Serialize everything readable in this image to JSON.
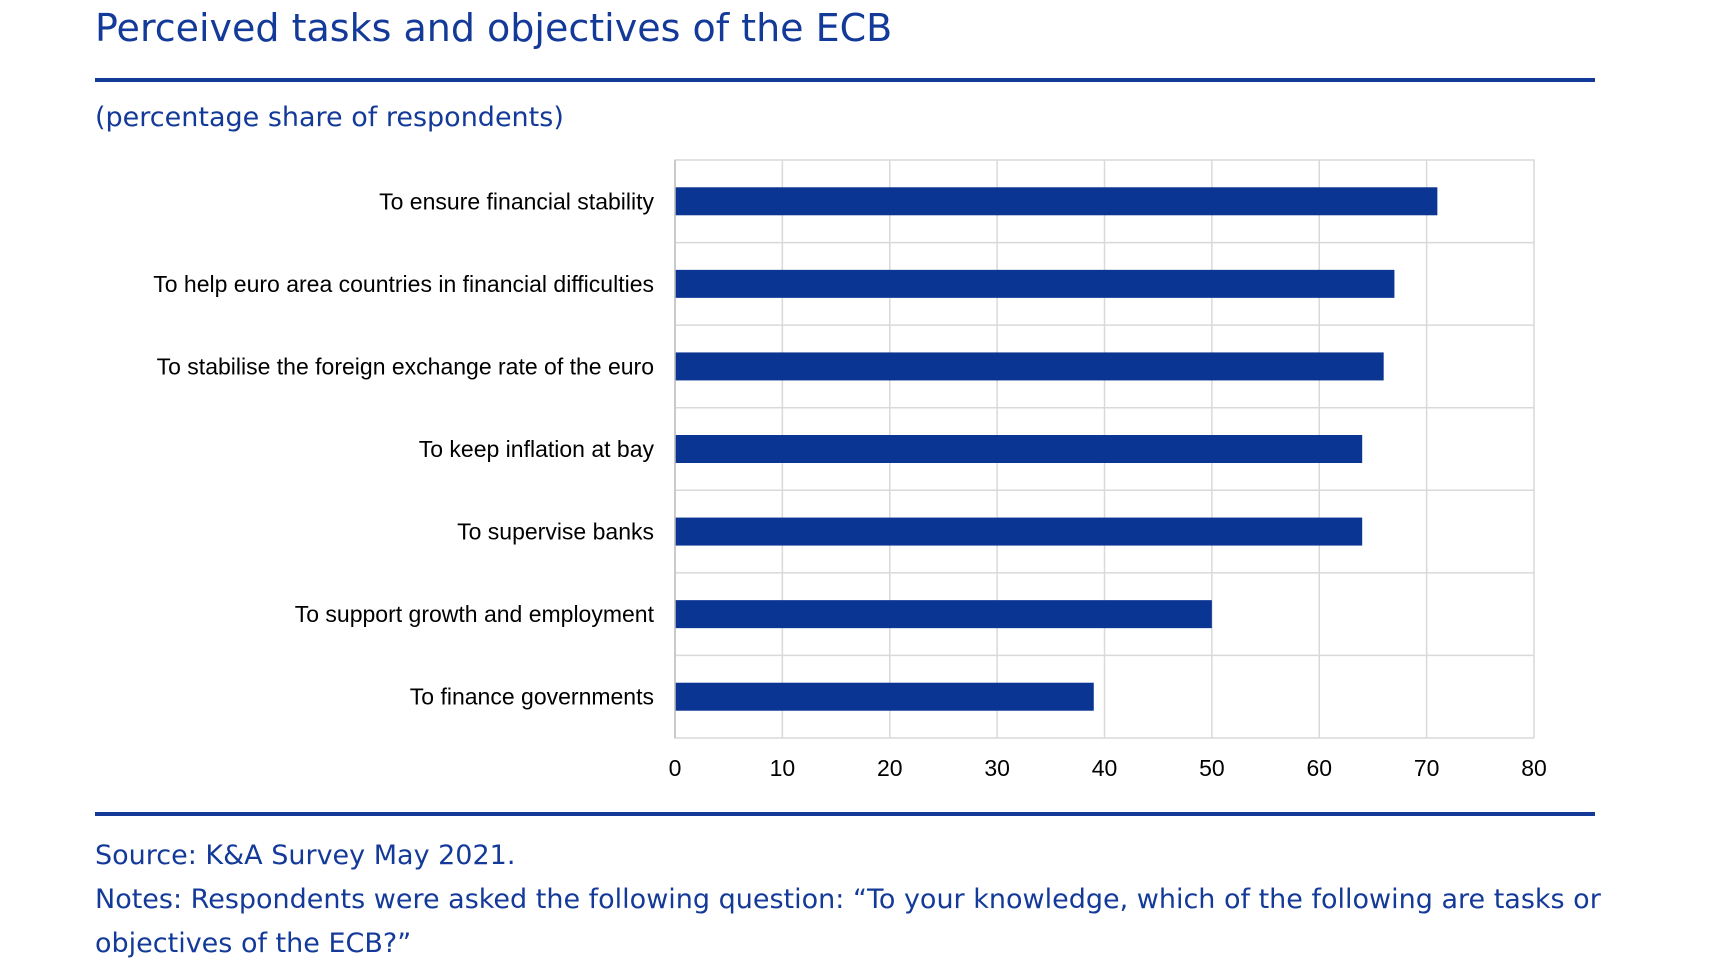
{
  "title": "Perceived tasks and objectives of the ECB",
  "subtitle": "(percentage share of respondents)",
  "source": "Source: K&A Survey May 2021.",
  "notes": "Notes: Respondents were asked the following question: “To your knowledge, which of the following are tasks or objectives of the ECB?”",
  "colors": {
    "accent": "#143a99",
    "bar": "#0b3592",
    "grid": "#d9d9d9"
  },
  "chart_data": {
    "type": "bar",
    "orientation": "horizontal",
    "categories": [
      "To ensure financial stability",
      "To help euro area countries in financial difficulties",
      "To stabilise the foreign exchange rate of the euro",
      "To keep inflation at bay",
      "To supervise banks",
      "To support growth and employment",
      "To finance governments"
    ],
    "values": [
      71,
      67,
      66,
      64,
      64,
      50,
      39
    ],
    "xlim": [
      0,
      80
    ],
    "xticks": [
      0,
      10,
      20,
      30,
      40,
      50,
      60,
      70,
      80
    ],
    "grid": true,
    "legend": "none"
  }
}
